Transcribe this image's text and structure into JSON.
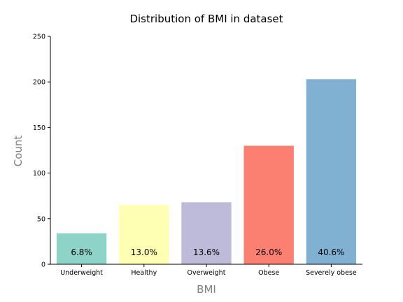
{
  "chart_data": {
    "type": "bar",
    "title": "Distribution of BMI in dataset",
    "xlabel": "BMI",
    "ylabel": "Count",
    "categories": [
      "Underweight",
      "Healthy",
      "Overweight",
      "Obese",
      "Severely obese"
    ],
    "values": [
      34,
      65,
      68,
      130,
      203
    ],
    "data_labels": [
      "6.8%",
      "13.0%",
      "13.6%",
      "26.0%",
      "40.6%"
    ],
    "colors": [
      "#8dd3c7",
      "#ffffb3",
      "#bebada",
      "#fb8072",
      "#80b1d3"
    ],
    "ylim": [
      0,
      250
    ],
    "yticks": [
      0,
      50,
      100,
      150,
      200,
      250
    ],
    "grid": false,
    "legend": "none"
  }
}
